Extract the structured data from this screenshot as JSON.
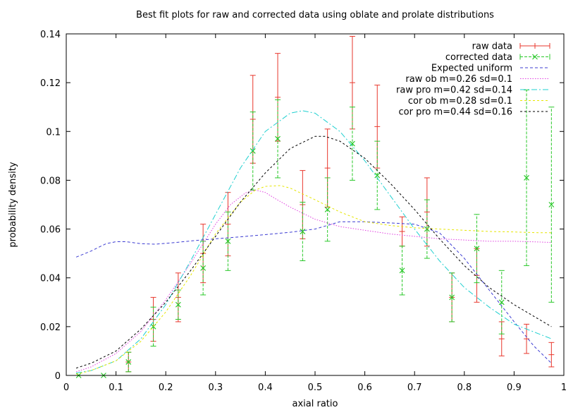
{
  "chart_data": {
    "type": "line",
    "title": "Best fit plots for raw and corrected data using oblate and prolate distributions",
    "xlabel": "axial ratio",
    "ylabel": "probability density",
    "xlim": [
      0,
      1
    ],
    "ylim": [
      0,
      0.14
    ],
    "xticks": [
      "0",
      "0.1",
      "0.2",
      "0.3",
      "0.4",
      "0.5",
      "0.6",
      "0.7",
      "0.8",
      "0.9",
      "1"
    ],
    "yticks": [
      "0",
      "0.02",
      "0.04",
      "0.06",
      "0.08",
      "0.1",
      "0.12",
      "0.14"
    ],
    "grid": false,
    "legend_position": "top-right",
    "series": [
      {
        "name": "raw data",
        "kind": "errorbar",
        "color": "#e8372c",
        "x": [
          0.025,
          0.075,
          0.125,
          0.175,
          0.225,
          0.275,
          0.325,
          0.375,
          0.425,
          0.475,
          0.525,
          0.575,
          0.625,
          0.675,
          0.725,
          0.775,
          0.825,
          0.875,
          0.925,
          0.975
        ],
        "y": [
          0,
          0,
          0.0055,
          0.023,
          0.032,
          0.05,
          0.062,
          0.105,
          0.114,
          0.07,
          0.085,
          0.12,
          0.102,
          0.059,
          0.067,
          0.032,
          0.041,
          0.015,
          0.015,
          0.0085
        ],
        "err": [
          0,
          0,
          0.004,
          0.009,
          0.01,
          0.012,
          0.013,
          0.018,
          0.018,
          0.014,
          0.016,
          0.019,
          0.017,
          0.006,
          0.014,
          0.01,
          0.011,
          0.007,
          0.006,
          0.005
        ]
      },
      {
        "name": "corrected data",
        "kind": "errorbar",
        "color": "#28c828",
        "x": [
          0.025,
          0.075,
          0.125,
          0.175,
          0.225,
          0.275,
          0.325,
          0.375,
          0.425,
          0.475,
          0.525,
          0.575,
          0.625,
          0.675,
          0.725,
          0.775,
          0.825,
          0.875,
          0.925,
          0.975
        ],
        "y": [
          0,
          0,
          0.0055,
          0.02,
          0.029,
          0.044,
          0.055,
          0.092,
          0.097,
          0.059,
          0.068,
          0.095,
          0.082,
          0.043,
          0.06,
          0.032,
          0.052,
          0.03,
          0.081,
          0.07
        ],
        "err": [
          0,
          0,
          0.004,
          0.008,
          0.006,
          0.011,
          0.012,
          0.016,
          0.016,
          0.012,
          0.013,
          0.015,
          0.014,
          0.01,
          0.012,
          0.01,
          0.014,
          0.013,
          0.036,
          0.04
        ]
      },
      {
        "name": "Expected uniform",
        "kind": "line",
        "color": "#3c3cd2",
        "dash": "4,3",
        "x": [
          0.02,
          0.05,
          0.08,
          0.1,
          0.12,
          0.15,
          0.18,
          0.22,
          0.26,
          0.3,
          0.35,
          0.4,
          0.45,
          0.5,
          0.55,
          0.6,
          0.65,
          0.7,
          0.75,
          0.8,
          0.85,
          0.9,
          0.94,
          0.975
        ],
        "y": [
          0.0485,
          0.051,
          0.054,
          0.0548,
          0.0548,
          0.054,
          0.0538,
          0.0545,
          0.0553,
          0.056,
          0.0568,
          0.0577,
          0.0587,
          0.06,
          0.063,
          0.063,
          0.0625,
          0.062,
          0.0585,
          0.048,
          0.035,
          0.022,
          0.012,
          0.005
        ]
      },
      {
        "name": "raw ob m=0.26 sd=0.1",
        "kind": "line",
        "color": "#e040e0",
        "dash": "1.5,2",
        "x": [
          0.02,
          0.05,
          0.1,
          0.15,
          0.2,
          0.25,
          0.3,
          0.33,
          0.36,
          0.38,
          0.4,
          0.42,
          0.45,
          0.5,
          0.55,
          0.6,
          0.65,
          0.7,
          0.75,
          0.8,
          0.85,
          0.9,
          0.95,
          0.975
        ],
        "y": [
          0.0015,
          0.0035,
          0.009,
          0.018,
          0.031,
          0.046,
          0.062,
          0.07,
          0.0748,
          0.076,
          0.075,
          0.0725,
          0.069,
          0.064,
          0.061,
          0.0595,
          0.058,
          0.057,
          0.056,
          0.0555,
          0.055,
          0.055,
          0.0547,
          0.0545
        ]
      },
      {
        "name": "raw pro m=0.42 sd=0.14",
        "kind": "line",
        "color": "#20d0d0",
        "dash": "8,3,2,3",
        "x": [
          0.02,
          0.05,
          0.1,
          0.15,
          0.2,
          0.25,
          0.3,
          0.35,
          0.4,
          0.45,
          0.475,
          0.5,
          0.55,
          0.6,
          0.65,
          0.7,
          0.75,
          0.8,
          0.85,
          0.9,
          0.95,
          0.975
        ],
        "y": [
          0.001,
          0.002,
          0.006,
          0.015,
          0.029,
          0.047,
          0.066,
          0.085,
          0.1,
          0.1075,
          0.1085,
          0.1075,
          0.1,
          0.088,
          0.074,
          0.06,
          0.047,
          0.036,
          0.028,
          0.021,
          0.017,
          0.015
        ]
      },
      {
        "name": "cor ob m=0.28 sd=0.1",
        "kind": "line",
        "color": "#e6e600",
        "dash": "3,3",
        "x": [
          0.02,
          0.05,
          0.1,
          0.15,
          0.2,
          0.25,
          0.3,
          0.35,
          0.38,
          0.4,
          0.43,
          0.45,
          0.5,
          0.55,
          0.6,
          0.65,
          0.7,
          0.75,
          0.8,
          0.85,
          0.9,
          0.95,
          0.975
        ],
        "y": [
          0.0005,
          0.002,
          0.006,
          0.014,
          0.026,
          0.041,
          0.058,
          0.071,
          0.076,
          0.0775,
          0.0778,
          0.0768,
          0.072,
          0.067,
          0.063,
          0.0615,
          0.0605,
          0.06,
          0.0595,
          0.059,
          0.0588,
          0.0585,
          0.0585
        ]
      },
      {
        "name": "cor pro m=0.44 sd=0.16",
        "kind": "line",
        "color": "#000000",
        "dash": "3,3",
        "x": [
          0.02,
          0.05,
          0.1,
          0.15,
          0.2,
          0.25,
          0.3,
          0.35,
          0.4,
          0.45,
          0.5,
          0.52,
          0.55,
          0.6,
          0.65,
          0.7,
          0.75,
          0.8,
          0.85,
          0.9,
          0.95,
          0.975
        ],
        "y": [
          0.003,
          0.005,
          0.01,
          0.019,
          0.03,
          0.043,
          0.057,
          0.071,
          0.083,
          0.093,
          0.098,
          0.098,
          0.096,
          0.089,
          0.079,
          0.068,
          0.056,
          0.045,
          0.036,
          0.029,
          0.023,
          0.02
        ]
      }
    ]
  }
}
